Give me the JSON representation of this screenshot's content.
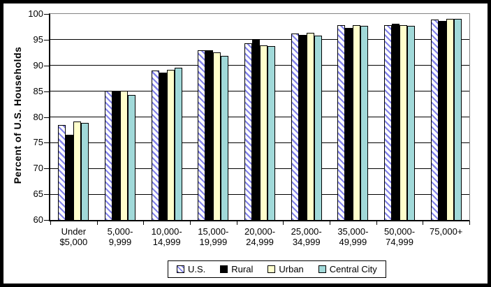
{
  "chart_data": {
    "type": "bar",
    "title": "",
    "xlabel": "",
    "ylabel": "Percent of U.S. Households",
    "ylim": [
      60,
      100
    ],
    "yticks": [
      100,
      95,
      90,
      85,
      80,
      75,
      70,
      65,
      60
    ],
    "grid": "horizontal",
    "plot_border_color": "#848484",
    "axis_color": "#000000",
    "gridline_color": "#000000",
    "legend_position": "bottom-center",
    "categories": [
      [
        "Under",
        "$5,000"
      ],
      [
        "5,000-",
        "9,999"
      ],
      [
        "10,000-",
        "14,999"
      ],
      [
        "15,000-",
        "19,999"
      ],
      [
        "20,000-",
        "24,999"
      ],
      [
        "25,000-",
        "34,999"
      ],
      [
        "35,000-",
        "49,999"
      ],
      [
        "50,000-",
        "74,999"
      ],
      [
        "75,000+",
        ""
      ]
    ],
    "series": [
      {
        "name": "U.S.",
        "fill": "hatch",
        "hatch_color": "#8282EA",
        "background": "#FFFFFF",
        "values": [
          78.5,
          85.1,
          89.0,
          92.9,
          94.3,
          96.2,
          97.8,
          97.9,
          98.9
        ]
      },
      {
        "name": "Rural",
        "fill": "solid",
        "color": "#000000",
        "values": [
          76.5,
          85.1,
          88.6,
          93.0,
          95.1,
          95.9,
          97.3,
          98.1,
          98.7
        ]
      },
      {
        "name": "Urban",
        "fill": "solid",
        "color": "#FFFFCC",
        "values": [
          79.1,
          85.1,
          89.1,
          92.6,
          93.9,
          96.3,
          97.9,
          97.9,
          99.0
        ]
      },
      {
        "name": "Central City",
        "fill": "solid",
        "color": "#A1D9D9",
        "values": [
          78.8,
          84.3,
          89.5,
          91.9,
          93.7,
          95.8,
          97.7,
          97.7,
          99.0
        ]
      }
    ]
  }
}
